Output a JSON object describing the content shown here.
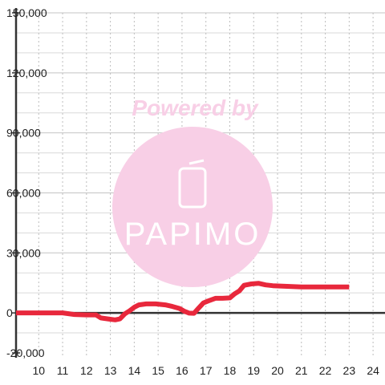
{
  "watermark": {
    "line1": "Powered by",
    "logo_text": "PAPIMO",
    "logo_icon": "phone-icon"
  },
  "chart_data": {
    "type": "line",
    "x_ticks": [
      "10",
      "11",
      "12",
      "13",
      "14",
      "15",
      "16",
      "17",
      "18",
      "19",
      "20",
      "21",
      "22",
      "23",
      "24"
    ],
    "y_ticks": [
      "150,000",
      "120,000",
      "90,000",
      "60,000",
      "30,000",
      "0",
      "-20,000"
    ],
    "xlim": [
      9.05,
      24.5
    ],
    "ylim": [
      -20000,
      150000
    ],
    "grid": true,
    "series": [
      {
        "color": "#e8283c",
        "x": [
          9.05,
          11.0,
          11.5,
          12.0,
          12.4,
          12.6,
          12.9,
          13.2,
          13.4,
          13.6,
          13.8,
          14.0,
          14.2,
          14.5,
          14.9,
          15.3,
          15.6,
          15.9,
          16.1,
          16.3,
          16.5,
          16.7,
          16.9,
          17.1,
          17.4,
          17.7,
          18.0,
          18.2,
          18.4,
          18.6,
          18.9,
          19.2,
          19.5,
          19.8,
          20.2,
          20.6,
          21.0,
          21.5,
          22.0,
          22.5,
          23.0
        ],
        "y": [
          0,
          0,
          -800,
          -1000,
          -1000,
          -2500,
          -3000,
          -3500,
          -3000,
          -500,
          1000,
          2800,
          4000,
          4500,
          4500,
          4000,
          3200,
          2200,
          800,
          -100,
          -200,
          2500,
          5000,
          6000,
          7300,
          7300,
          7500,
          9500,
          11000,
          13800,
          14500,
          14800,
          14000,
          13600,
          13400,
          13200,
          13000,
          13000,
          13000,
          13000,
          13000
        ]
      }
    ]
  }
}
